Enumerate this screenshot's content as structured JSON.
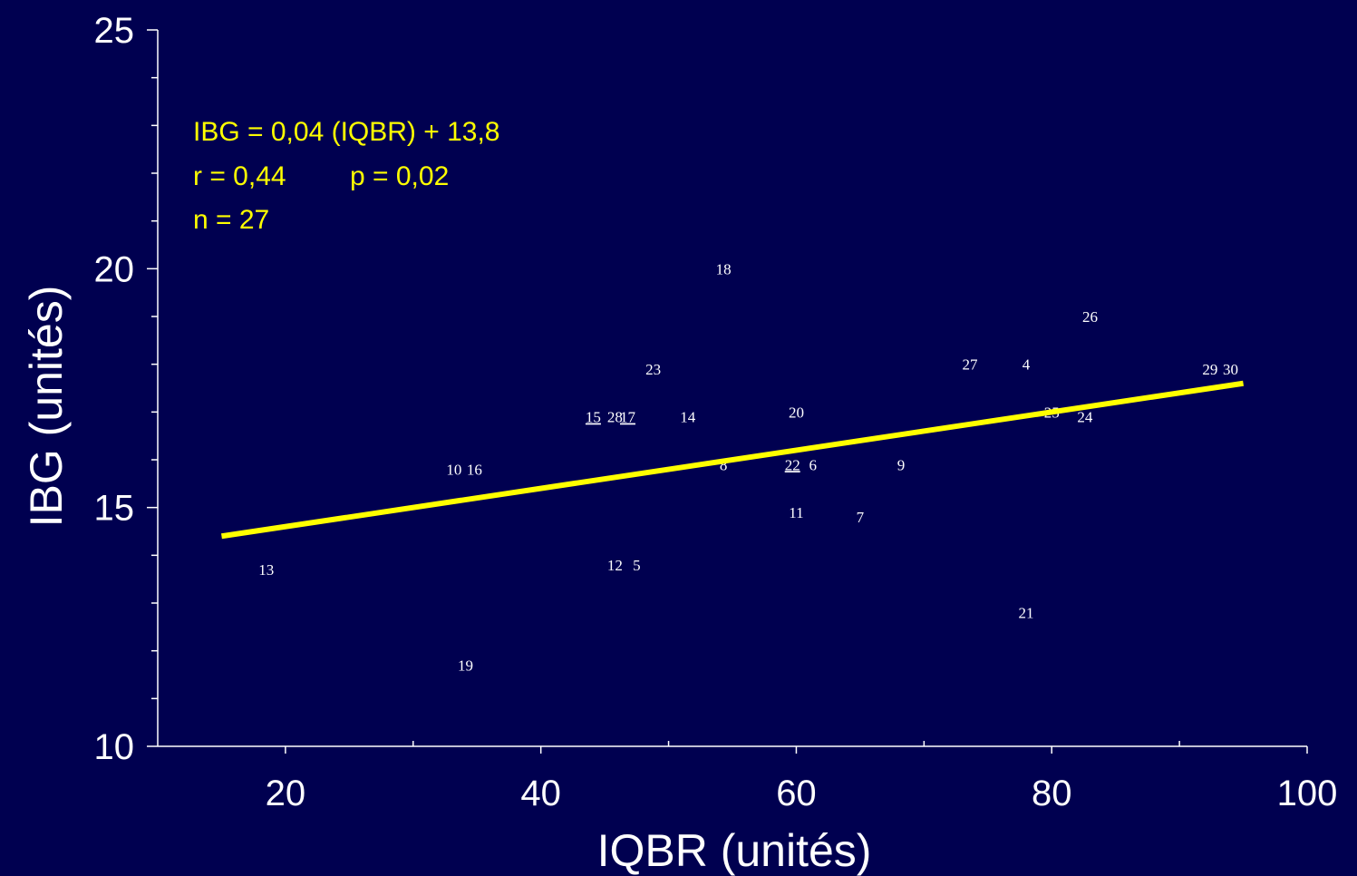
{
  "chart_data": {
    "type": "scatter",
    "xlabel": "IQBR (unités)",
    "ylabel": "IBG (unités)",
    "xlim": [
      10,
      100
    ],
    "ylim": [
      10,
      25
    ],
    "x_ticks": [
      20,
      40,
      60,
      80,
      100
    ],
    "y_ticks": [
      10,
      15,
      20,
      25
    ],
    "x_minor_step": 10,
    "y_minor_step": 1,
    "grid": false,
    "background_color": "#000050",
    "axis_color": "#ffffff",
    "regression_color": "#ffff00",
    "annotations": [
      "IBG = 0,04 (IQBR) + 13,8",
      "r = 0,44",
      "p = 0,02",
      "n = 27"
    ],
    "regression_line": {
      "slope": 0.04,
      "intercept": 13.8,
      "x_range": [
        15,
        95
      ]
    },
    "points": [
      {
        "label": "4",
        "x": 78,
        "y": 18
      },
      {
        "label": "5",
        "x": 47.5,
        "y": 13.8
      },
      {
        "label": "6",
        "x": 61.3,
        "y": 15.9
      },
      {
        "label": "7",
        "x": 65,
        "y": 14.8
      },
      {
        "label": "8",
        "x": 54.3,
        "y": 15.9
      },
      {
        "label": "9",
        "x": 68.2,
        "y": 15.9
      },
      {
        "label": "10",
        "x": 33.2,
        "y": 15.8
      },
      {
        "label": "11",
        "x": 60,
        "y": 14.9
      },
      {
        "label": "12",
        "x": 45.8,
        "y": 13.8
      },
      {
        "label": "13",
        "x": 18.5,
        "y": 13.7
      },
      {
        "label": "14",
        "x": 51.5,
        "y": 16.9
      },
      {
        "label": "15",
        "x": 44.1,
        "y": 16.9,
        "underline": true
      },
      {
        "label": "16",
        "x": 34.8,
        "y": 15.8
      },
      {
        "label": "17",
        "x": 46.8,
        "y": 16.9,
        "underline": true
      },
      {
        "label": "18",
        "x": 54.3,
        "y": 20
      },
      {
        "label": "19",
        "x": 34.1,
        "y": 11.7
      },
      {
        "label": "20",
        "x": 60,
        "y": 17
      },
      {
        "label": "21",
        "x": 78,
        "y": 12.8
      },
      {
        "label": "22",
        "x": 59.7,
        "y": 15.9,
        "underline": true
      },
      {
        "label": "23",
        "x": 48.8,
        "y": 17.9
      },
      {
        "label": "24",
        "x": 82.6,
        "y": 16.9
      },
      {
        "label": "25",
        "x": 80,
        "y": 17
      },
      {
        "label": "26",
        "x": 83,
        "y": 19
      },
      {
        "label": "27",
        "x": 73.6,
        "y": 18
      },
      {
        "label": "28",
        "x": 45.8,
        "y": 16.9
      },
      {
        "label": "29",
        "x": 92.4,
        "y": 17.9
      },
      {
        "label": "30",
        "x": 94,
        "y": 17.9
      }
    ]
  }
}
